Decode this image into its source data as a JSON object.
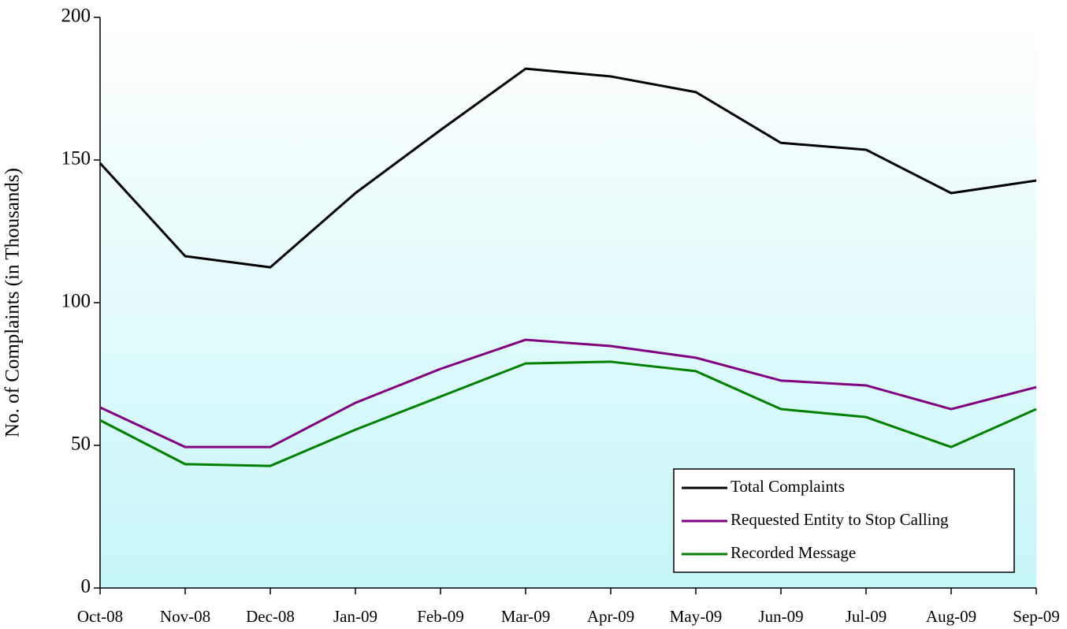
{
  "chart_data": {
    "type": "line",
    "y_label": "No. of Complaints (in Thousands)",
    "categories": [
      "Oct-08",
      "Nov-08",
      "Dec-08",
      "Jan-09",
      "Feb-09",
      "Mar-09",
      "Apr-09",
      "May-09",
      "Jun-09",
      "Jul-09",
      "Aug-09",
      "Sep-09"
    ],
    "series": [
      {
        "name": "Total Complaints",
        "color": "#000000",
        "values": [
          148.9,
          116.3,
          112.4,
          138.4,
          160.5,
          182,
          179.3,
          173.8,
          156,
          153.6,
          138.4,
          142.8
        ]
      },
      {
        "name": "Requested Entity to Stop Calling",
        "color": "#800080",
        "values": [
          63.3,
          49.4,
          49.4,
          64.9,
          76.8,
          87,
          84.8,
          80.7,
          72.7,
          71,
          62.7,
          70.4
        ]
      },
      {
        "name": "Recorded Message",
        "color": "#008000",
        "values": [
          58.8,
          43.4,
          42.8,
          55.5,
          67.1,
          78.7,
          79.3,
          76,
          62.7,
          59.9,
          49.4,
          62.7
        ]
      }
    ],
    "ylim": [
      0,
      200
    ],
    "yticks": [
      0,
      50,
      100,
      150,
      200
    ],
    "grid": false,
    "legend": "lower right"
  }
}
